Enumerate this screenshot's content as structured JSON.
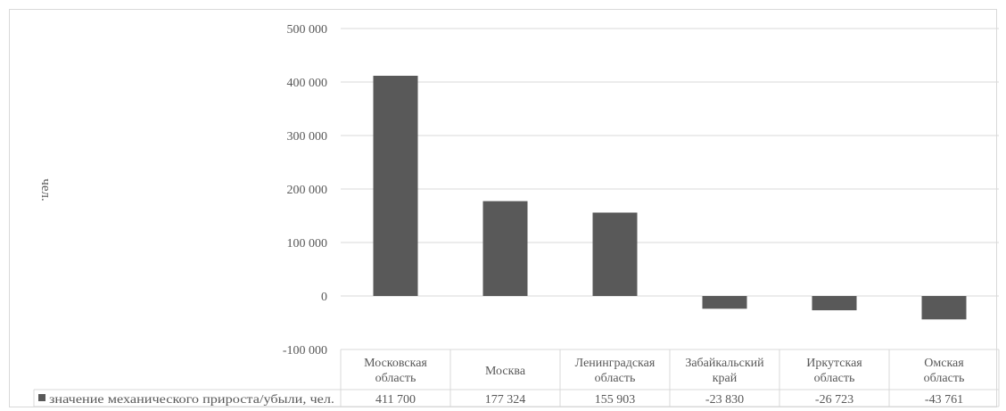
{
  "chart_data": {
    "type": "bar",
    "ylabel": "чел.",
    "ylim": [
      -100000,
      500000
    ],
    "yticks": [
      {
        "value": 500000,
        "label": "500 000"
      },
      {
        "value": 400000,
        "label": "400 000"
      },
      {
        "value": 300000,
        "label": "300 000"
      },
      {
        "value": 200000,
        "label": "200 000"
      },
      {
        "value": 100000,
        "label": "100 000"
      },
      {
        "value": 0,
        "label": "0"
      },
      {
        "value": -100000,
        "label": "-100 000"
      }
    ],
    "grid": true,
    "legend": "data-table",
    "categories": [
      [
        "Московская",
        "область"
      ],
      [
        "Москва"
      ],
      [
        "Ленинградская",
        "область"
      ],
      [
        "Забайкальский",
        "край"
      ],
      [
        "Иркутская",
        "область"
      ],
      [
        "Омская",
        "область"
      ]
    ],
    "series": [
      {
        "name": "значение механического прироста/убыли, чел.",
        "values": [
          411700,
          177324,
          155903,
          -23830,
          -26723,
          -43761
        ],
        "value_labels": [
          "411 700",
          "177 324",
          "155 903",
          "-23 830",
          "-26 723",
          "-43 761"
        ]
      }
    ],
    "colors": {
      "bar": "#595959",
      "grid": "#d9d9d9",
      "text": "#595959"
    }
  }
}
